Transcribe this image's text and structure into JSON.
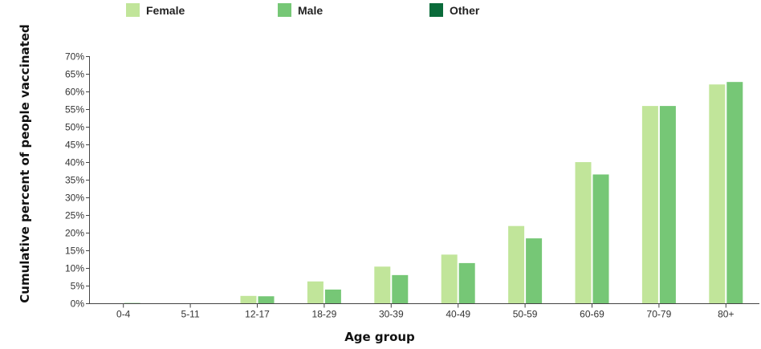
{
  "chart_data": {
    "type": "bar",
    "xlabel": "Age group",
    "ylabel": "Cumulative percent of people vaccinated",
    "ylim": [
      0,
      70
    ],
    "ytick_step": 5,
    "ytick_suffix": "%",
    "grid": false,
    "legend_position": "top",
    "categories": [
      "0-4",
      "5-11",
      "12-17",
      "18-29",
      "30-39",
      "40-49",
      "50-59",
      "60-69",
      "70-79",
      "80+"
    ],
    "series": [
      {
        "name": "Female",
        "color": "#c1e59a",
        "values": [
          0.1,
          0,
          2.2,
          6.3,
          10.5,
          13.9,
          22.0,
          40.1,
          56.0,
          62.1
        ]
      },
      {
        "name": "Male",
        "color": "#76c776",
        "values": [
          0.2,
          0,
          2.1,
          4.0,
          8.1,
          11.5,
          18.5,
          36.6,
          56.0,
          62.8
        ]
      },
      {
        "name": "Other",
        "color": "#0a6b3a",
        "values": [
          0,
          0,
          0,
          0,
          0,
          0,
          0,
          0,
          0,
          0
        ]
      }
    ]
  }
}
